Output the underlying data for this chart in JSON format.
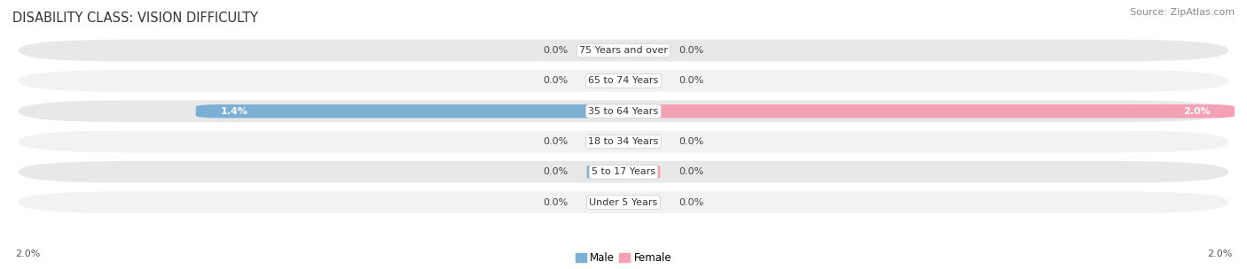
{
  "title": "DISABILITY CLASS: VISION DIFFICULTY",
  "source": "Source: ZipAtlas.com",
  "categories": [
    "Under 5 Years",
    "5 to 17 Years",
    "18 to 34 Years",
    "35 to 64 Years",
    "65 to 74 Years",
    "75 Years and over"
  ],
  "male_values": [
    0.0,
    0.0,
    0.0,
    1.4,
    0.0,
    0.0
  ],
  "female_values": [
    0.0,
    0.0,
    0.0,
    2.0,
    0.0,
    0.0
  ],
  "male_color": "#7bafd4",
  "female_color": "#f4a0b5",
  "male_color_strong": "#6fa8cc",
  "female_color_strong": "#f08aab",
  "row_bg_light": "#f2f2f2",
  "row_bg_dark": "#e8e8e8",
  "x_max": 2.0,
  "x_min": -2.0,
  "stub_size": 0.12,
  "background_color": "#ffffff",
  "title_fontsize": 10.5,
  "source_fontsize": 8,
  "cat_fontsize": 8,
  "val_fontsize": 8
}
